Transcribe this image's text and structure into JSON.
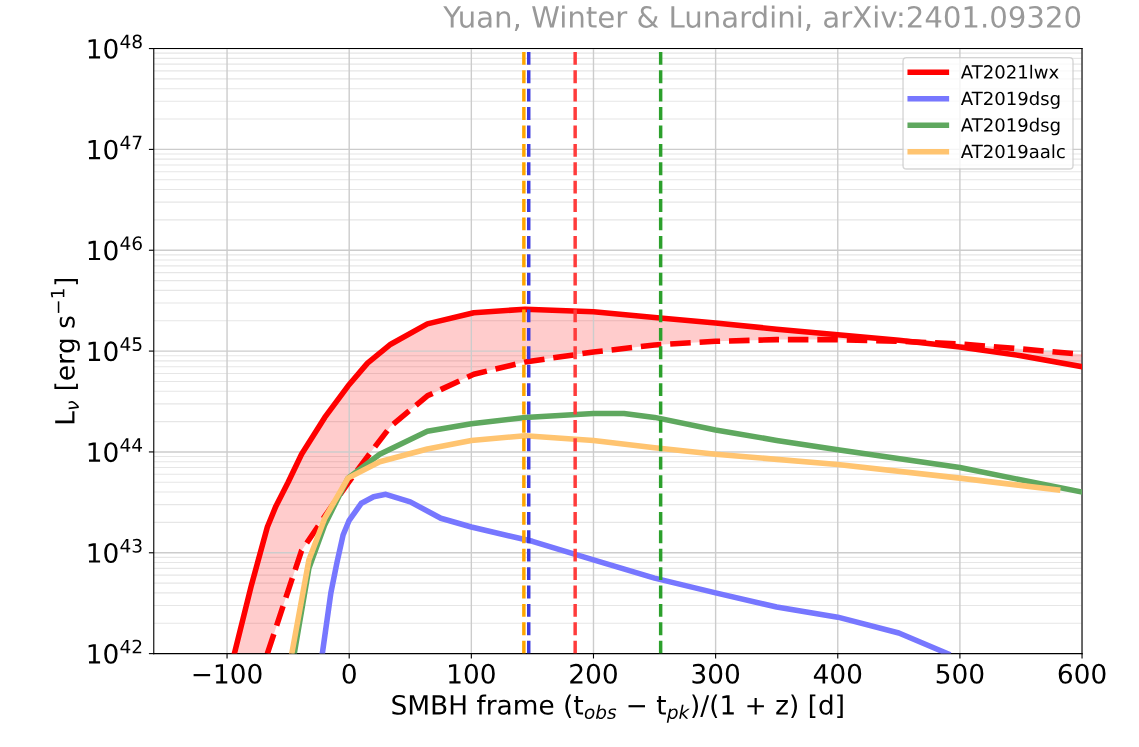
{
  "chart_data": {
    "type": "line",
    "xlabel": "SMBH frame (t$_{obs}$ − t$_{pk}$)/(1 + z) [d]",
    "ylabel": "L$_{ν}$ [erg s$^{−1}$]",
    "annotations": [
      "Yuan, Winter & Lunardini, arXiv:2401.09320"
    ],
    "log": "y",
    "xlim": [
      -160,
      600
    ],
    "ylim": [
      1e+42,
      1e+48
    ],
    "xticks": [
      {
        "value": -100,
        "label": "−100"
      },
      0,
      100,
      200,
      300,
      400,
      500,
      600
    ],
    "yticks": [
      {
        "value": 1e+42,
        "label": "10$^{42}$"
      },
      {
        "value": 1e+43,
        "label": "10$^{43}$"
      },
      {
        "value": 1e+44,
        "label": "10$^{44}$"
      },
      {
        "value": 1e+45,
        "label": "10$^{45}$"
      },
      {
        "value": 1e+46,
        "label": "10$^{46}$"
      },
      {
        "value": 1e+47,
        "label": "10$^{47}$"
      },
      {
        "value": 1e+48,
        "label": "10$^{48}$"
      }
    ],
    "grid": true,
    "legend": "top right",
    "series": [
      {
        "name": "AT2021lwx",
        "color": "#ff0000",
        "line_style": "solid",
        "x": [
          -94,
          -80,
          -67,
          -60,
          -50,
          -39,
          -20,
          -1,
          15,
          34,
          64,
          102,
          144,
          200,
          250,
          300,
          350,
          400,
          450,
          500,
          550,
          600
        ],
        "values": [
          1e+42,
          4.8e+42,
          1.8e+43,
          2.9e+43,
          5e+43,
          9.5e+43,
          2.2e+44,
          4.5e+44,
          7.6e+44,
          1.17e+45,
          1.86e+45,
          2.4e+45,
          2.6e+45,
          2.45e+45,
          2.15e+45,
          1.9e+45,
          1.65e+45,
          1.45e+45,
          1.28e+45,
          1.1e+45,
          9e+44,
          7e+44
        ],
        "lower": [
          1e+42,
          1e+42,
          1e+42,
          1.8e+42,
          4.2e+42,
          1.05e+43,
          2.3e+43,
          4.9e+43,
          9e+43,
          1.8e+44,
          3.6e+44,
          5.9e+44,
          7.8e+44,
          9.8e+44,
          1.15e+45,
          1.25e+45,
          1.3e+45,
          1.3e+45,
          1.25e+45,
          1.18e+45,
          1.05e+45,
          9.3e+44
        ],
        "upper": [
          1e+42,
          4.8e+42,
          1.8e+43,
          2.9e+43,
          5e+43,
          9.5e+43,
          2.2e+44,
          4.5e+44,
          7.6e+44,
          1.17e+45,
          1.86e+45,
          2.4e+45,
          2.6e+45,
          2.45e+45,
          2.15e+45,
          1.9e+45,
          1.65e+45,
          1.45e+45,
          1.28e+45,
          1.1e+45,
          9e+44,
          7e+44
        ]
      },
      {
        "color": "#ff0000",
        "line_style": "dashed",
        "x": [
          -67,
          -60,
          -50,
          -39,
          -20,
          -1,
          15,
          34,
          64,
          102,
          144,
          200,
          250,
          300,
          350,
          400,
          450,
          500,
          550,
          600
        ],
        "values": [
          1e+42,
          1.8e+42,
          4.2e+42,
          1.05e+43,
          2.3e+43,
          4.9e+43,
          9e+43,
          1.8e+44,
          3.6e+44,
          5.9e+44,
          7.8e+44,
          9.8e+44,
          1.15e+45,
          1.25e+45,
          1.3e+45,
          1.3e+45,
          1.25e+45,
          1.18e+45,
          1.05e+45,
          9.3e+44
        ]
      },
      {
        "name": "AT2019dsg",
        "color": "#7777ff",
        "line_style": "solid",
        "x": [
          -22,
          -15,
          -10,
          -5,
          0,
          10,
          20,
          30,
          50,
          75,
          100,
          150,
          200,
          250,
          300,
          350,
          400,
          450,
          490
        ],
        "values": [
          1e+42,
          4e+42,
          8e+42,
          1.5e+43,
          2.1e+43,
          3.1e+43,
          3.6e+43,
          3.8e+43,
          3.2e+43,
          2.2e+43,
          1.8e+43,
          1.3e+43,
          8.5e+42,
          5.6e+42,
          4e+42,
          2.9e+42,
          2.3e+42,
          1.6e+42,
          1e+42
        ]
      },
      {
        "name": "AT2019dsg",
        "color": "#5fa85f",
        "line_style": "solid",
        "x": [
          -45,
          -33,
          -20,
          -1,
          25,
          64,
          100,
          144,
          200,
          225,
          250,
          300,
          350,
          400,
          500,
          600
        ],
        "values": [
          1e+42,
          7e+42,
          1.9e+43,
          5.5e+43,
          9.5e+43,
          1.6e+44,
          1.9e+44,
          2.2e+44,
          2.4e+44,
          2.4e+44,
          2.2e+44,
          1.65e+44,
          1.3e+44,
          1.05e+44,
          7e+43,
          4e+43
        ]
      },
      {
        "name": "AT2019aalc",
        "color": "#ffc470",
        "line_style": "solid",
        "x": [
          -47,
          -33,
          -20,
          -1,
          25,
          64,
          100,
          144,
          200,
          250,
          300,
          400,
          500,
          580
        ],
        "values": [
          1e+42,
          8.5e+42,
          2.2e+43,
          5.5e+43,
          8e+43,
          1.07e+44,
          1.3e+44,
          1.45e+44,
          1.3e+44,
          1.1e+44,
          9.5e+43,
          7.5e+43,
          5.5e+43,
          4.2e+43
        ]
      }
    ],
    "ref_lines": [
      {
        "axis": "x",
        "value": 143,
        "color": "#ffa500",
        "line_style": "dashed"
      },
      {
        "axis": "x",
        "value": 147,
        "color": "#3b3bdd",
        "line_style": "dashed"
      },
      {
        "axis": "x",
        "value": 185,
        "color": "#ff3b3b",
        "line_style": "dashed"
      },
      {
        "axis": "x",
        "value": 255,
        "color": "#2ca02c",
        "line_style": "dashed"
      }
    ]
  }
}
